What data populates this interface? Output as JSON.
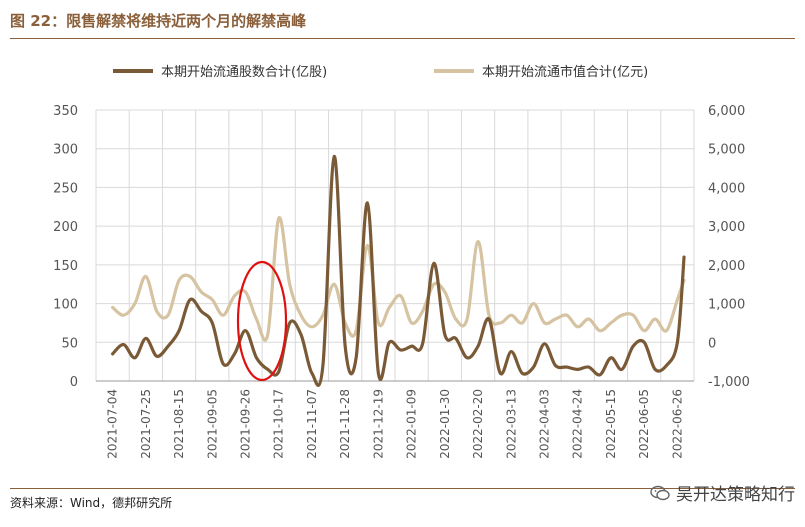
{
  "title": "图 22：限售解禁将维持近两个月的解禁高峰",
  "source": "资料来源：Wind，德邦研究所",
  "watermark": "吴开达策略知行",
  "colors": {
    "primary": "#7a5a36",
    "secondary": "#d5c3a1",
    "grid": "#d9d9d9",
    "accent": "#8a5f3a",
    "highlight": "#e01010"
  },
  "chart_data": {
    "type": "line",
    "legend_position": "top",
    "grid": true,
    "x": [
      "2021-07-04",
      "2021-07-25",
      "2021-08-15",
      "2021-09-05",
      "2021-09-26",
      "2021-10-17",
      "2021-11-07",
      "2021-11-28",
      "2021-12-19",
      "2022-01-09",
      "2022-01-30",
      "2022-02-20",
      "2022-03-13",
      "2022-04-03",
      "2022-04-24",
      "2022-05-15",
      "2022-06-05",
      "2022-06-26"
    ],
    "ylim_left": [
      0,
      350
    ],
    "yticks_left": [
      "0",
      "50",
      "100",
      "150",
      "200",
      "250",
      "300",
      "350"
    ],
    "ylim_right": [
      -1000,
      6000
    ],
    "yticks_right": [
      "-1,000",
      "0",
      "1,000",
      "2,000",
      "3,000",
      "4,000",
      "5,000",
      "6,000"
    ],
    "series": [
      {
        "name": "本期开始流通股数合计(亿股)",
        "axis": "left",
        "color": "#7a5a36",
        "x": [
          0,
          0.33,
          0.67,
          1,
          1.33,
          1.67,
          2,
          2.33,
          2.67,
          3,
          3.33,
          3.67,
          4,
          4.33,
          4.67,
          5,
          5.33,
          5.67,
          6,
          6.33,
          6.67,
          7,
          7.33,
          7.67,
          8,
          8.33,
          8.67,
          9,
          9.33,
          9.67,
          10,
          10.33,
          10.67,
          11,
          11.33,
          11.67,
          12,
          12.33,
          12.67,
          13,
          13.33,
          13.67,
          14,
          14.33,
          14.67,
          15,
          15.33,
          15.67,
          16,
          16.33,
          16.67,
          17,
          17.2
        ],
        "values": [
          35,
          47,
          30,
          55,
          32,
          45,
          65,
          105,
          90,
          75,
          22,
          35,
          65,
          30,
          15,
          12,
          75,
          60,
          10,
          20,
          290,
          45,
          30,
          230,
          10,
          50,
          40,
          45,
          48,
          152,
          60,
          55,
          30,
          45,
          80,
          10,
          38,
          10,
          18,
          48,
          20,
          18,
          15,
          18,
          8,
          30,
          15,
          45,
          50,
          15,
          20,
          50,
          160
        ]
      },
      {
        "name": "本期开始流通市值合计(亿元)",
        "axis": "right",
        "color": "#d5c3a1",
        "x": [
          0,
          0.33,
          0.67,
          1,
          1.33,
          1.67,
          2,
          2.33,
          2.67,
          3,
          3.33,
          3.67,
          4,
          4.33,
          4.67,
          5,
          5.33,
          5.67,
          6,
          6.33,
          6.67,
          7,
          7.33,
          7.67,
          8,
          8.33,
          8.67,
          9,
          9.33,
          9.67,
          10,
          10.33,
          10.67,
          11,
          11.33,
          11.67,
          12,
          12.33,
          12.67,
          13,
          13.33,
          13.67,
          14,
          14.33,
          14.67,
          15,
          15.33,
          15.67,
          16,
          16.33,
          16.67,
          17,
          17.2
        ],
        "values": [
          900,
          700,
          1000,
          1700,
          800,
          700,
          1600,
          1700,
          1300,
          1100,
          700,
          1200,
          1300,
          600,
          200,
          3200,
          1500,
          700,
          400,
          700,
          1500,
          500,
          300,
          2500,
          500,
          900,
          1200,
          500,
          800,
          1500,
          1300,
          600,
          600,
          2600,
          700,
          500,
          700,
          500,
          1000,
          500,
          600,
          700,
          400,
          600,
          300,
          500,
          700,
          700,
          300,
          600,
          300,
          1100,
          1600
        ]
      }
    ]
  }
}
